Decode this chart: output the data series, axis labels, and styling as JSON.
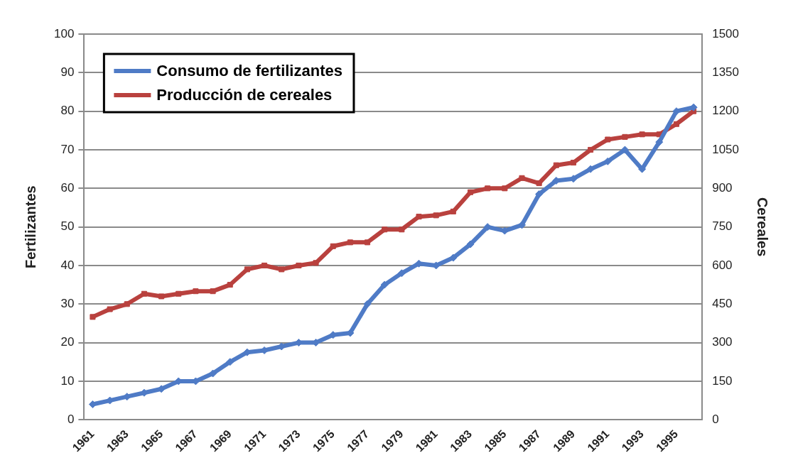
{
  "chart_data": {
    "type": "line",
    "ylabel": "Fertilizantes",
    "y2label": "Cereales",
    "categories": [
      "1961",
      null,
      "1963",
      null,
      "1965",
      null,
      "1967",
      null,
      "1969",
      null,
      "1971",
      null,
      "1973",
      null,
      "1975",
      null,
      "1977",
      null,
      "1979",
      null,
      "1981",
      null,
      "1983",
      null,
      "1985",
      null,
      "1987",
      null,
      "1989",
      null,
      "1991",
      null,
      "1993",
      null,
      "1995",
      null
    ],
    "series": [
      {
        "name": "Consumo de fertilizantes",
        "color": "#4f7bc6",
        "marker": "diamond",
        "values": [
          4,
          5,
          6,
          7,
          8,
          10,
          10,
          12,
          15,
          17.5,
          18,
          19,
          20,
          20,
          22,
          22.5,
          30,
          35,
          38,
          40.5,
          40,
          42,
          45.5,
          50,
          49,
          50.5,
          58.5,
          62,
          62.5,
          65,
          67,
          70,
          65,
          72,
          80,
          81
        ]
      },
      {
        "name": "Producción de cereales",
        "color": "#b9413e",
        "marker": "square",
        "axis": "y2",
        "values": [
          400,
          430,
          450,
          490,
          480,
          490,
          500,
          500,
          525,
          585,
          600,
          585,
          600,
          610,
          675,
          690,
          690,
          740,
          740,
          790,
          795,
          810,
          885,
          900,
          900,
          940,
          920,
          990,
          1000,
          1050,
          1090,
          1100,
          1110,
          1110,
          1150,
          1200
        ]
      }
    ],
    "ylim": [
      0,
      100
    ],
    "yticks": [
      0,
      10,
      20,
      30,
      40,
      50,
      60,
      70,
      80,
      90,
      100
    ],
    "y2lim": [
      0,
      1500
    ],
    "y2ticks": [
      0,
      150,
      300,
      450,
      600,
      750,
      900,
      1050,
      1200,
      1350,
      1500
    ],
    "grid": "y",
    "legend": "top left",
    "line_style": "solid"
  }
}
